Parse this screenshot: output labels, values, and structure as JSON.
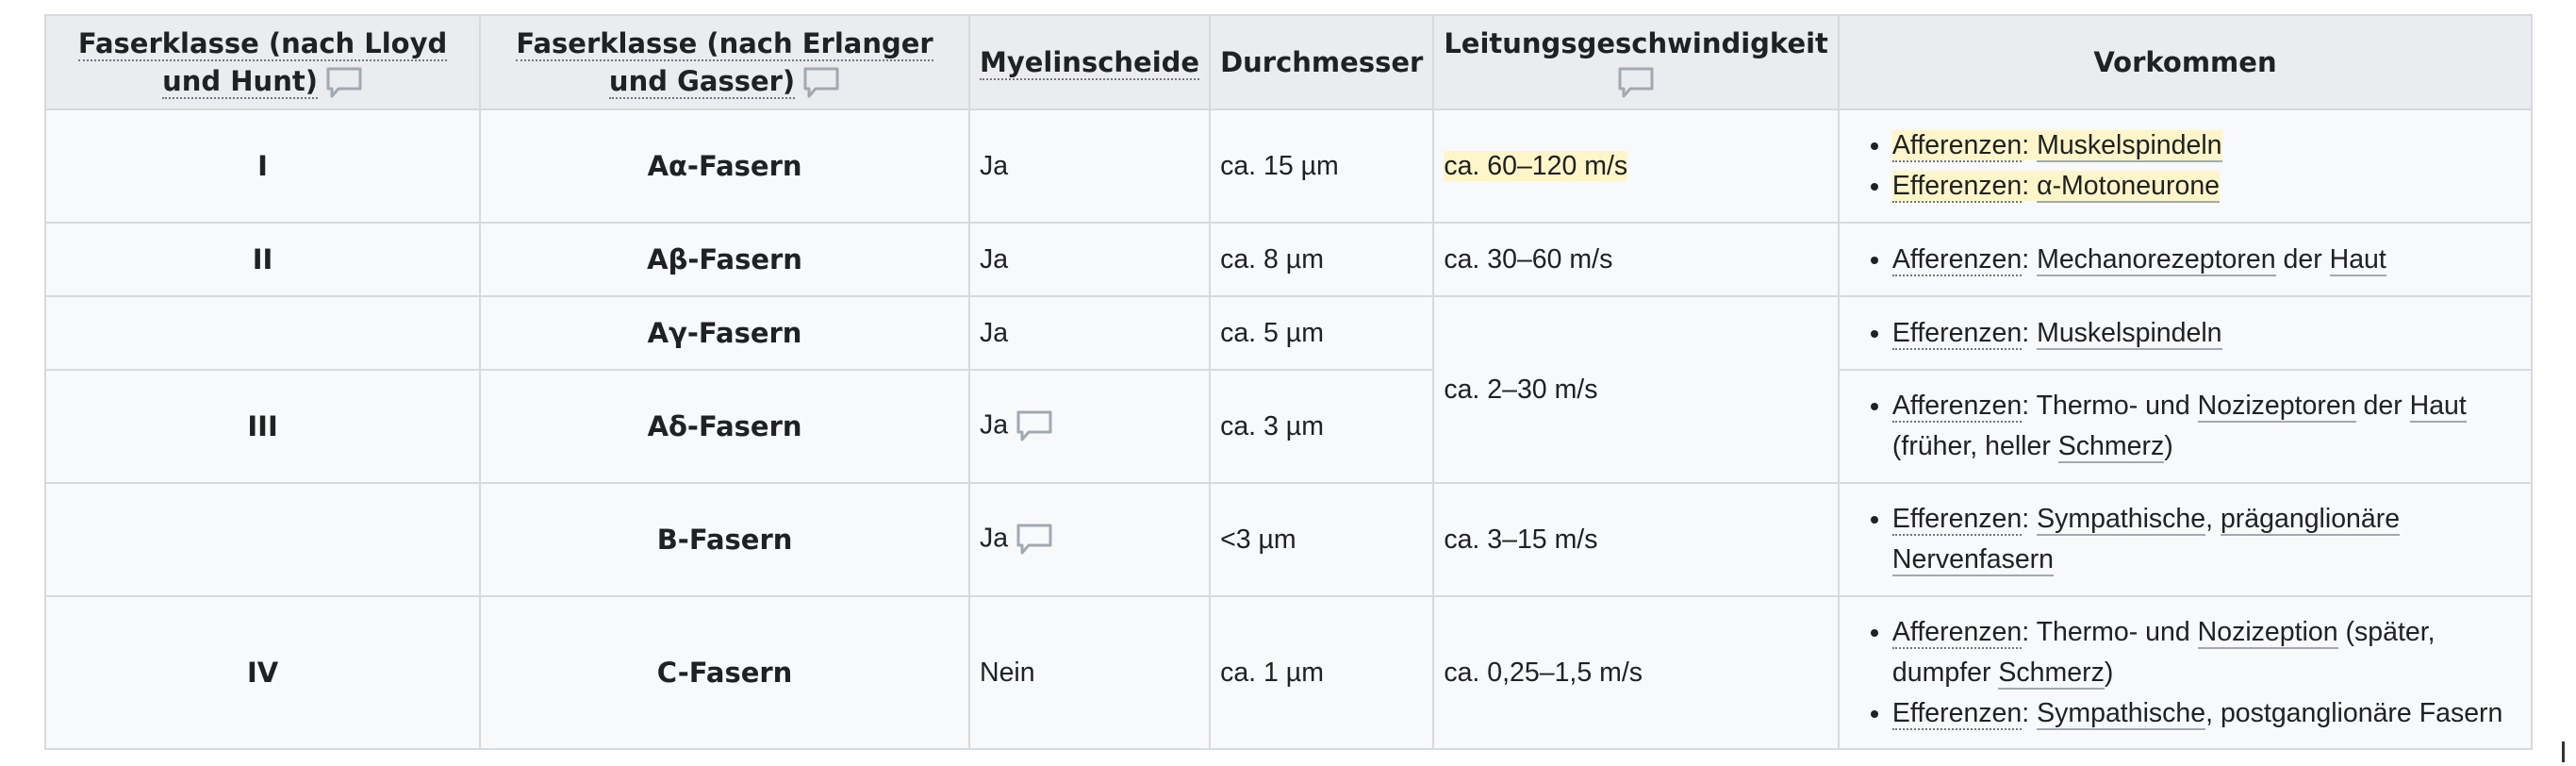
{
  "headers": {
    "h1": "Faserklasse (nach Lloyd und Hunt)",
    "h2": "Faserklasse (nach Erlanger und Gasser)",
    "h3": "Myelinscheide",
    "h4": "Durchmesser",
    "h5": "Leitungsgeschwindigkeit",
    "h6": "Vorkommen"
  },
  "rows": [
    {
      "klasse": "I",
      "faser": "Aα-Fasern",
      "myelin": "Ja",
      "durchmesser": "ca. 15 µm",
      "geschw": "ca. 60–120 m/s",
      "v1a": "Afferenzen",
      "v1sep": ": ",
      "v1b": "Muskelspindeln",
      "v2a": "Efferenzen",
      "v2sep": ": ",
      "v2b": "α-Motoneurone"
    },
    {
      "klasse": "II",
      "faser": "Aβ-Fasern",
      "myelin": "Ja",
      "durchmesser": "ca. 8 µm",
      "geschw": "ca. 30–60 m/s",
      "v1a": "Afferenzen",
      "v1sep": ": ",
      "v1b": "Mechanorezeptoren",
      "v1c": " der ",
      "v1d": "Haut"
    },
    {
      "klasse": "",
      "faser": "Aγ-Fasern",
      "myelin": "Ja",
      "durchmesser": "ca. 5 µm",
      "geschw": "ca. 2–30 m/s",
      "v1a": "Efferenzen",
      "v1sep": ": ",
      "v1b": "Muskelspindeln"
    },
    {
      "klasse": "III",
      "faser": "Aδ-Fasern",
      "myelin": "Ja",
      "durchmesser": "ca. 3 µm",
      "v1a": "Afferenzen",
      "v1sep": ": Thermo- und ",
      "v1b": "Nozizeptoren",
      "v1c": " der ",
      "v1d": "Haut",
      "v1e": " (früher, heller ",
      "v1f": "Schmerz",
      "v1g": ")"
    },
    {
      "klasse": "",
      "faser": "B-Fasern",
      "myelin": "Ja",
      "durchmesser": "<3 µm",
      "geschw": "ca. 3–15 m/s",
      "v1a": "Efferenzen",
      "v1sep": ": ",
      "v1b": "Sympathische",
      "v1c": ", ",
      "v1d": "präganglionäre Nervenfasern"
    },
    {
      "klasse": "IV",
      "faser": "C-Fasern",
      "myelin": "Nein",
      "durchmesser": "ca. 1 µm",
      "geschw": "ca. 0,25–1,5 m/s",
      "v1a": "Afferenzen",
      "v1sep": ": Thermo- und ",
      "v1b": "Nozizeption",
      "v1c": " (später, dumpfer ",
      "v1d": "Schmerz",
      "v1e": ")",
      "v2a": "Efferenzen",
      "v2sep": ": ",
      "v2b": "Sympathische",
      "v2c": ", postganglionäre Fasern"
    }
  ],
  "icons": {
    "comment": "speech-bubble"
  },
  "colors": {
    "highlight": "#fef6c8",
    "header_bg": "#eaecf0",
    "cell_bg": "#f8f9fa",
    "border": "#d6d9de",
    "icon": "#a2a9b1"
  }
}
